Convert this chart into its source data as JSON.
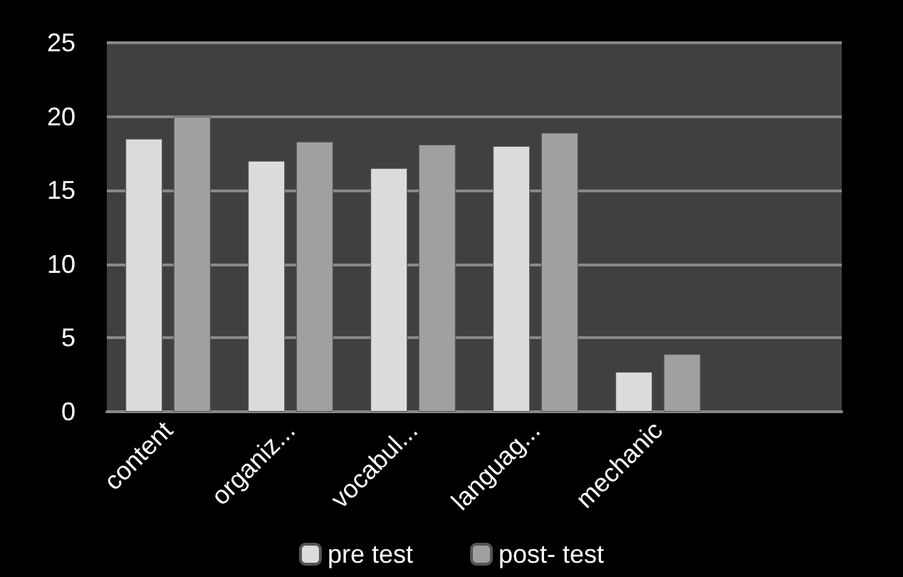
{
  "chart_data": {
    "type": "bar",
    "categories": [
      "content",
      "organiz...",
      "vocabul...",
      "languag...",
      "mechanic",
      null
    ],
    "series": [
      {
        "name": "pre test",
        "color": "#dcdcdc",
        "values": [
          18.5,
          17,
          16.5,
          18,
          2.7,
          null
        ]
      },
      {
        "name": "post- test",
        "color": "#a0a0a0",
        "values": [
          20,
          18.3,
          18.1,
          18.9,
          3.9,
          null
        ]
      }
    ],
    "ylim": [
      0,
      25
    ],
    "yticks": [
      0,
      5,
      10,
      15,
      20,
      25
    ],
    "grid": "y",
    "legend": "bottom"
  }
}
